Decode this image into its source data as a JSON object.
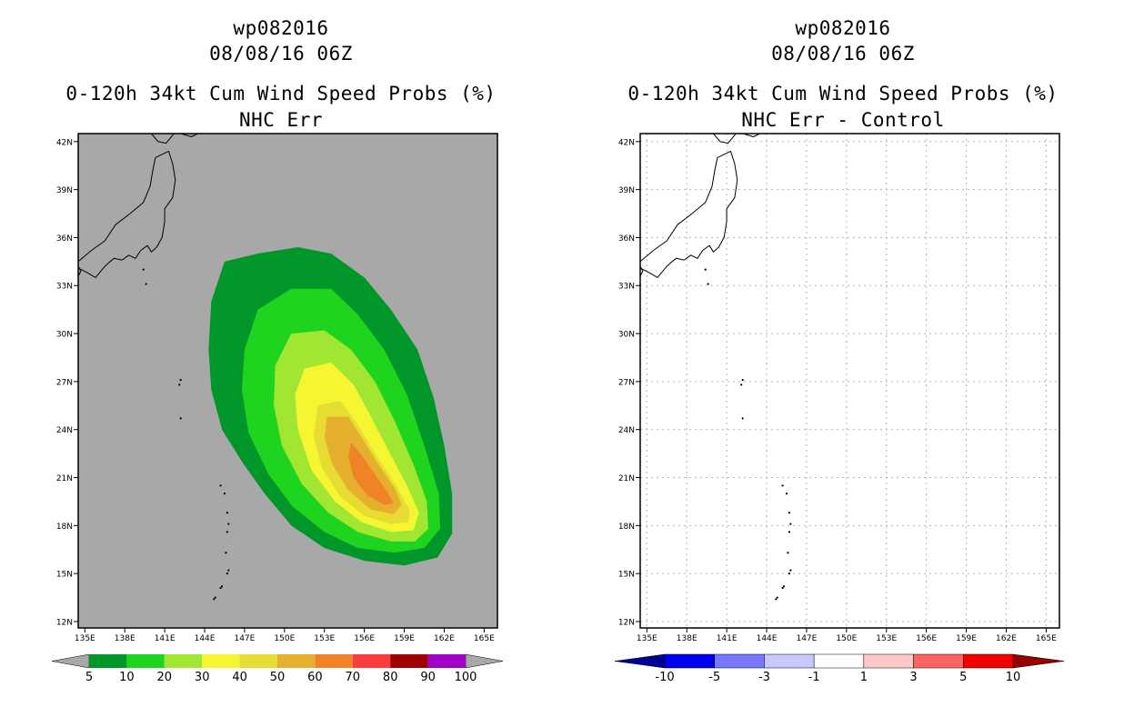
{
  "chart_data": [
    {
      "type": "contour-map",
      "storm_id": "wp082016",
      "datetime": "08/08/16 06Z",
      "title": "0-120h 34kt Cum Wind Speed Probs (%)",
      "subtitle": "NHC Err",
      "lon_ticks": [
        "135E",
        "138E",
        "141E",
        "144E",
        "147E",
        "150E",
        "153E",
        "156E",
        "159E",
        "162E",
        "165E"
      ],
      "lat_ticks": [
        "42N",
        "39N",
        "36N",
        "33N",
        "30N",
        "27N",
        "24N",
        "21N",
        "18N",
        "15N",
        "12N"
      ],
      "lon_range": [
        134.5,
        166
      ],
      "lat_range": [
        11.6,
        42.5
      ],
      "background": "#a8a8a8",
      "legend": {
        "labels": [
          "5",
          "10",
          "20",
          "30",
          "40",
          "50",
          "60",
          "70",
          "80",
          "90",
          "100"
        ],
        "colors": [
          "#00962a",
          "#1ed41e",
          "#a0e632",
          "#f5f532",
          "#e6dc32",
          "#e6af2d",
          "#f08228",
          "#fa3c3c",
          "#a00000",
          "#a000c8"
        ]
      },
      "probability_field": {
        "peak_center_lon": 156.5,
        "peak_center_lat": 21.5,
        "max_contour_pct": 60,
        "filled_levels": [
          5,
          10,
          20,
          30,
          40,
          50,
          60
        ]
      }
    },
    {
      "type": "contour-map",
      "storm_id": "wp082016",
      "datetime": "08/08/16 06Z",
      "title": "0-120h 34kt Cum Wind Speed Probs (%)",
      "subtitle": "NHC Err - Control",
      "lon_ticks": [
        "135E",
        "138E",
        "141E",
        "144E",
        "147E",
        "150E",
        "153E",
        "156E",
        "159E",
        "162E",
        "165E"
      ],
      "lat_ticks": [
        "42N",
        "39N",
        "36N",
        "33N",
        "30N",
        "27N",
        "24N",
        "21N",
        "18N",
        "15N",
        "12N"
      ],
      "lon_range": [
        134.5,
        166
      ],
      "lat_range": [
        11.6,
        42.5
      ],
      "background": "#ffffff",
      "grid": true,
      "legend": {
        "labels": [
          "-10",
          "-5",
          "-3",
          "-1",
          "1",
          "3",
          "5",
          "10"
        ],
        "colors": [
          "#000096",
          "#0000f0",
          "#7878ff",
          "#c8c8ff",
          "#ffffff",
          "#ffc8c8",
          "#ff6464",
          "#f00000",
          "#960000"
        ]
      },
      "difference_field": "none (all values between -1 and 1)"
    }
  ]
}
